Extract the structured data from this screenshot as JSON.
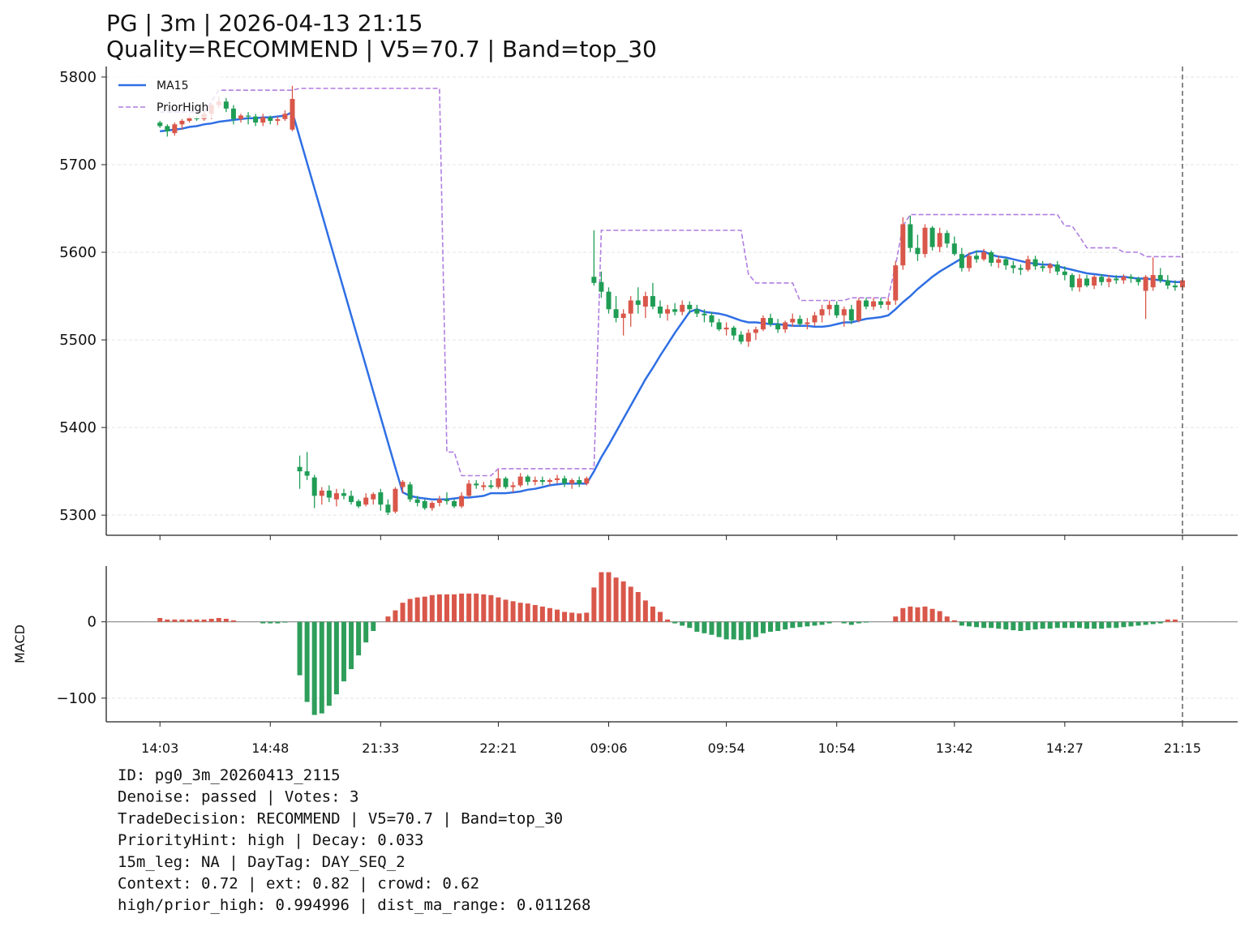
{
  "chart_data": [
    {
      "type": "candlestick",
      "title": "PG | 3m | 2026-04-13 21:15",
      "subtitle": "Quality=RECOMMEND | V5=70.7 | Band=top_30",
      "up_color": "#d9574a",
      "down_color": "#1f9d55",
      "grid": true,
      "legend": "upper left",
      "xlim": [
        -7.3,
        146.5
      ],
      "xticks": [
        0,
        15,
        30,
        46,
        61,
        77,
        92,
        108,
        123,
        139
      ],
      "ylim": [
        5277,
        5812
      ],
      "yticks": [
        5300,
        5400,
        5500,
        5600,
        5700,
        5800
      ],
      "open": [
        5748,
        5744,
        5736,
        5746,
        5750,
        5753,
        5752,
        5758,
        5768,
        5772,
        5764,
        5752,
        5756,
        5755,
        5748,
        5754,
        5750,
        5752,
        5740,
        5355,
        5350,
        5343,
        5322,
        5328,
        5318,
        5325,
        5322,
        5316,
        5312,
        5318,
        5326,
        5312,
        5304,
        5332,
        5335,
        5318,
        5316,
        5308,
        5314,
        5318,
        5316,
        5310,
        5322,
        5336,
        5332,
        5334,
        5332,
        5342,
        5332,
        5334,
        5344,
        5338,
        5340,
        5338,
        5340,
        5342,
        5336,
        5340,
        5336,
        5572,
        5566,
        5555,
        5535,
        5525,
        5530,
        5545,
        5538,
        5550,
        5538,
        5530,
        5535,
        5532,
        5540,
        5535,
        5530,
        5528,
        5520,
        5512,
        5514,
        5506,
        5498,
        5508,
        5512,
        5525,
        5518,
        5512,
        5520,
        5524,
        5518,
        5520,
        5528,
        5535,
        5540,
        5528,
        5535,
        5522,
        5545,
        5538,
        5544,
        5540,
        5545,
        5585,
        5632,
        5605,
        5598,
        5628,
        5606,
        5622,
        5610,
        5598,
        5582,
        5596,
        5592,
        5600,
        5588,
        5592,
        5585,
        5582,
        5580,
        5592,
        5584,
        5582,
        5586,
        5578,
        5574,
        5560,
        5570,
        5562,
        5572,
        5566,
        5570,
        5568,
        5572,
        5570,
        5556,
        5560,
        5574,
        5568,
        5562,
        5560
      ],
      "high": [
        5750,
        5746,
        5748,
        5752,
        5756,
        5756,
        5760,
        5770,
        5778,
        5776,
        5768,
        5758,
        5760,
        5758,
        5758,
        5756,
        5755,
        5762,
        5790,
        5368,
        5372,
        5346,
        5332,
        5334,
        5330,
        5330,
        5328,
        5318,
        5325,
        5326,
        5330,
        5318,
        5332,
        5340,
        5338,
        5322,
        5318,
        5316,
        5322,
        5326,
        5318,
        5326,
        5340,
        5340,
        5338,
        5340,
        5352,
        5344,
        5338,
        5348,
        5346,
        5344,
        5344,
        5342,
        5346,
        5345,
        5342,
        5344,
        5344,
        5625,
        5578,
        5560,
        5550,
        5535,
        5550,
        5560,
        5555,
        5565,
        5545,
        5540,
        5542,
        5545,
        5544,
        5540,
        5535,
        5532,
        5524,
        5520,
        5516,
        5510,
        5512,
        5515,
        5528,
        5530,
        5524,
        5522,
        5530,
        5528,
        5525,
        5532,
        5540,
        5545,
        5544,
        5538,
        5540,
        5548,
        5548,
        5548,
        5548,
        5548,
        5590,
        5640,
        5642,
        5620,
        5632,
        5630,
        5628,
        5625,
        5618,
        5605,
        5600,
        5602,
        5604,
        5602,
        5596,
        5594,
        5590,
        5586,
        5596,
        5596,
        5590,
        5588,
        5590,
        5584,
        5576,
        5575,
        5574,
        5574,
        5575,
        5574,
        5574,
        5575,
        5575,
        5572,
        5574,
        5594,
        5582,
        5574,
        5568,
        5570
      ],
      "low": [
        5742,
        5732,
        5733,
        5740,
        5748,
        5750,
        5750,
        5752,
        5765,
        5760,
        5746,
        5748,
        5746,
        5744,
        5744,
        5746,
        5745,
        5750,
        5738,
        5330,
        5340,
        5308,
        5312,
        5315,
        5310,
        5318,
        5312,
        5308,
        5310,
        5312,
        5305,
        5300,
        5302,
        5325,
        5315,
        5310,
        5306,
        5305,
        5310,
        5312,
        5308,
        5308,
        5320,
        5330,
        5328,
        5330,
        5330,
        5330,
        5326,
        5332,
        5334,
        5334,
        5334,
        5334,
        5336,
        5332,
        5330,
        5332,
        5334,
        5562,
        5548,
        5530,
        5520,
        5505,
        5515,
        5530,
        5525,
        5535,
        5525,
        5522,
        5528,
        5528,
        5530,
        5526,
        5520,
        5515,
        5510,
        5505,
        5500,
        5495,
        5492,
        5500,
        5510,
        5515,
        5508,
        5508,
        5515,
        5516,
        5512,
        5516,
        5520,
        5528,
        5525,
        5515,
        5518,
        5520,
        5535,
        5534,
        5536,
        5534,
        5540,
        5580,
        5600,
        5590,
        5594,
        5602,
        5600,
        5605,
        5596,
        5578,
        5578,
        5588,
        5590,
        5584,
        5582,
        5580,
        5576,
        5574,
        5578,
        5580,
        5578,
        5576,
        5574,
        5568,
        5556,
        5555,
        5560,
        5558,
        5562,
        5560,
        5564,
        5564,
        5565,
        5562,
        5524,
        5556,
        5565,
        5558,
        5556,
        5556
      ],
      "close": [
        5744,
        5738,
        5746,
        5750,
        5754,
        5752,
        5758,
        5768,
        5772,
        5764,
        5752,
        5756,
        5755,
        5748,
        5754,
        5750,
        5752,
        5758,
        5775,
        5350,
        5345,
        5322,
        5328,
        5320,
        5325,
        5322,
        5315,
        5310,
        5320,
        5324,
        5312,
        5303,
        5330,
        5338,
        5318,
        5314,
        5308,
        5314,
        5318,
        5316,
        5310,
        5322,
        5336,
        5334,
        5334,
        5332,
        5342,
        5332,
        5334,
        5344,
        5338,
        5340,
        5338,
        5340,
        5342,
        5336,
        5340,
        5336,
        5342,
        5565,
        5555,
        5535,
        5525,
        5530,
        5545,
        5540,
        5550,
        5538,
        5530,
        5535,
        5532,
        5540,
        5535,
        5530,
        5528,
        5520,
        5512,
        5514,
        5505,
        5498,
        5508,
        5512,
        5525,
        5518,
        5512,
        5520,
        5524,
        5518,
        5520,
        5528,
        5535,
        5540,
        5528,
        5535,
        5522,
        5545,
        5538,
        5544,
        5540,
        5544,
        5585,
        5632,
        5605,
        5598,
        5628,
        5606,
        5622,
        5610,
        5598,
        5582,
        5596,
        5592,
        5600,
        5588,
        5592,
        5585,
        5582,
        5580,
        5592,
        5584,
        5582,
        5586,
        5578,
        5574,
        5560,
        5570,
        5562,
        5572,
        5566,
        5570,
        5568,
        5572,
        5570,
        5566,
        5572,
        5574,
        5568,
        5562,
        5560,
        5568
      ],
      "series": [
        {
          "name": "MA15",
          "color": "#2f6fe4",
          "dashed": false,
          "values": [
            5738,
            5739,
            5740,
            5741,
            5743,
            5744,
            5746,
            5747,
            5749,
            5750,
            5751,
            5752,
            5753,
            5753,
            5754,
            5754,
            5755,
            5756,
            5760,
            5731,
            5702,
            5673,
            5644,
            5615,
            5586,
            5557,
            5528,
            5499,
            5470,
            5441,
            5412,
            5383,
            5354,
            5326,
            5322,
            5320,
            5319,
            5318,
            5318,
            5318,
            5319,
            5320,
            5320,
            5321,
            5322,
            5325,
            5325,
            5325,
            5326,
            5327,
            5329,
            5330,
            5332,
            5334,
            5335,
            5336,
            5336,
            5336,
            5336,
            5350,
            5366,
            5380,
            5395,
            5410,
            5425,
            5440,
            5455,
            5468,
            5482,
            5495,
            5508,
            5520,
            5532,
            5535,
            5532,
            5531,
            5530,
            5528,
            5525,
            5522,
            5520,
            5520,
            5519,
            5518,
            5518,
            5517,
            5516,
            5516,
            5516,
            5515,
            5515,
            5516,
            5518,
            5520,
            5520,
            5522,
            5524,
            5525,
            5526,
            5528,
            5535,
            5543,
            5550,
            5558,
            5565,
            5572,
            5578,
            5583,
            5588,
            5593,
            5598,
            5601,
            5601,
            5597,
            5595,
            5594,
            5592,
            5590,
            5588,
            5587,
            5586,
            5586,
            5584,
            5582,
            5580,
            5578,
            5576,
            5575,
            5574,
            5573,
            5572,
            5572,
            5571,
            5570,
            5570,
            5569,
            5568,
            5567,
            5566,
            5566
          ]
        },
        {
          "name": "PriorHigh",
          "color": "#b07fe0",
          "dashed": true,
          "values": [
            5760,
            5760,
            5760,
            5760,
            5760,
            5760,
            5760,
            5772,
            5785,
            5785,
            5785,
            5785,
            5785,
            5785,
            5785,
            5785,
            5785,
            5785,
            5785,
            5787,
            5787,
            5787,
            5787,
            5787,
            5787,
            5787,
            5787,
            5787,
            5787,
            5787,
            5787,
            5787,
            5787,
            5787,
            5787,
            5787,
            5787,
            5787,
            5787,
            5372,
            5372,
            5345,
            5345,
            5345,
            5345,
            5345,
            5353,
            5353,
            5353,
            5353,
            5353,
            5353,
            5353,
            5353,
            5353,
            5353,
            5353,
            5353,
            5353,
            5353,
            5625,
            5625,
            5625,
            5625,
            5625,
            5625,
            5625,
            5625,
            5625,
            5625,
            5625,
            5625,
            5625,
            5625,
            5625,
            5625,
            5625,
            5625,
            5625,
            5625,
            5575,
            5565,
            5565,
            5565,
            5565,
            5565,
            5565,
            5545,
            5545,
            5545,
            5545,
            5545,
            5545,
            5545,
            5548,
            5548,
            5548,
            5548,
            5548,
            5548,
            5585,
            5630,
            5643,
            5643,
            5643,
            5643,
            5643,
            5643,
            5643,
            5643,
            5643,
            5643,
            5643,
            5643,
            5643,
            5643,
            5643,
            5643,
            5643,
            5643,
            5643,
            5643,
            5643,
            5630,
            5630,
            5618,
            5605,
            5605,
            5605,
            5605,
            5605,
            5600,
            5600,
            5600,
            5595,
            5595,
            5595,
            5595,
            5595,
            5595
          ]
        }
      ]
    },
    {
      "type": "bar",
      "ylabel": "MACD",
      "up_color": "#d9574a",
      "down_color": "#2e9e5b",
      "grid": true,
      "xlim": [
        -7.3,
        146.5
      ],
      "xticks": [
        {
          "value": 0,
          "label": "14:03"
        },
        {
          "value": 15,
          "label": "14:48"
        },
        {
          "value": 30,
          "label": "21:33"
        },
        {
          "value": 46,
          "label": "22:21"
        },
        {
          "value": 61,
          "label": "09:06"
        },
        {
          "value": 77,
          "label": "09:54"
        },
        {
          "value": 92,
          "label": "10:54"
        },
        {
          "value": 108,
          "label": "13:42"
        },
        {
          "value": 123,
          "label": "14:27"
        },
        {
          "value": 139,
          "label": "21:15"
        }
      ],
      "ylim": [
        -131,
        73
      ],
      "yticks": [
        {
          "value": -100,
          "label": "−100"
        },
        0
      ],
      "values": [
        5,
        3,
        3,
        3,
        3,
        3,
        3,
        4,
        5,
        4,
        2,
        0,
        0,
        0,
        -2,
        -2,
        -2,
        -1,
        0,
        -70,
        -105,
        -122,
        -120,
        -110,
        -95,
        -78,
        -62,
        -44,
        -27,
        -12,
        0,
        7,
        15,
        25,
        30,
        32,
        33,
        35,
        36,
        36,
        36,
        37,
        37,
        37,
        36,
        35,
        32,
        29,
        27,
        25,
        24,
        22,
        20,
        18,
        16,
        13,
        12,
        11,
        12,
        45,
        65,
        65,
        58,
        53,
        46,
        39,
        28,
        20,
        13,
        3,
        -2,
        -5,
        -8,
        -13,
        -15,
        -17,
        -20,
        -23,
        -23,
        -24,
        -23,
        -20,
        -15,
        -13,
        -12,
        -10,
        -8,
        -7,
        -6,
        -5,
        -4,
        -2,
        0,
        -2,
        -4,
        -2,
        -1,
        0,
        0,
        0,
        7,
        18,
        20,
        19,
        20,
        17,
        14,
        7,
        2,
        -5,
        -6,
        -7,
        -8,
        -8,
        -9,
        -10,
        -11,
        -12,
        -11,
        -10,
        -9,
        -9,
        -8,
        -8,
        -8,
        -8,
        -9,
        -9,
        -9,
        -8,
        -8,
        -7,
        -6,
        -5,
        -4,
        -3,
        -2,
        3,
        3,
        0
      ]
    }
  ],
  "footer": [
    "ID: pg0_3m_20260413_2115",
    "Denoise: passed | Votes: 3",
    "TradeDecision: RECOMMEND | V5=70.7 | Band=top_30",
    "PriorityHint: high | Decay: 0.033",
    "15m_leg: NA | DayTag: DAY_SEQ_2",
    "Context: 0.72 | ext: 0.82 | crowd: 0.62",
    "high/prior_high: 0.994996 | dist_ma_range: 0.011268"
  ]
}
